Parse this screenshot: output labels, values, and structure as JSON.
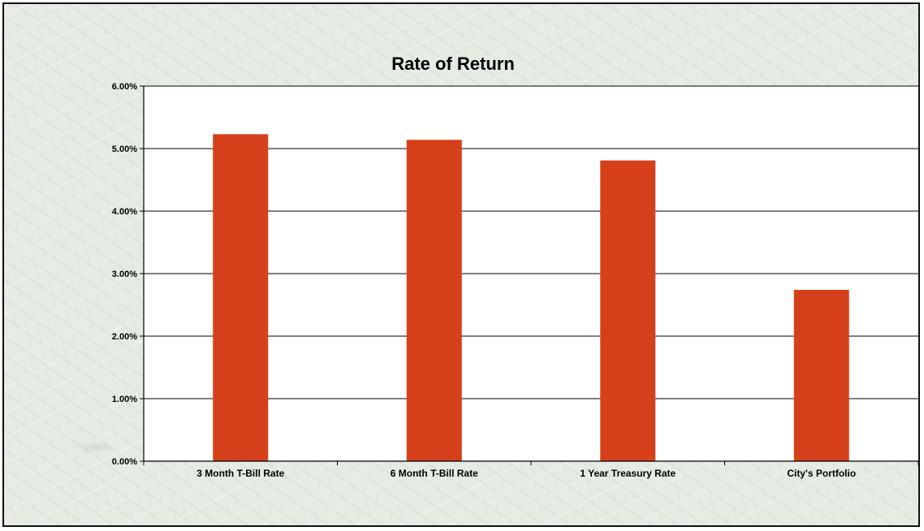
{
  "chart_data": {
    "type": "bar",
    "title": "Rate of Return",
    "xlabel": "",
    "ylabel": "",
    "categories": [
      "3 Month T-Bill Rate",
      "6 Month T-Bill Rate",
      "1 Year Treasury Rate",
      "City's Portfolio"
    ],
    "values": [
      0.0523,
      0.0514,
      0.0481,
      0.0274
    ],
    "ylim": [
      0,
      0.06
    ],
    "yticks": [
      0,
      0.01,
      0.02,
      0.03,
      0.04,
      0.05,
      0.06
    ],
    "ytick_labels": [
      "0.00%",
      "1.00%",
      "2.00%",
      "3.00%",
      "4.00%",
      "5.00%",
      "6.00%"
    ],
    "grid": true,
    "legend": "none",
    "colors": {
      "bar": "#d5401b",
      "plot_background": "#ffffff",
      "gridline": "#000000"
    }
  }
}
